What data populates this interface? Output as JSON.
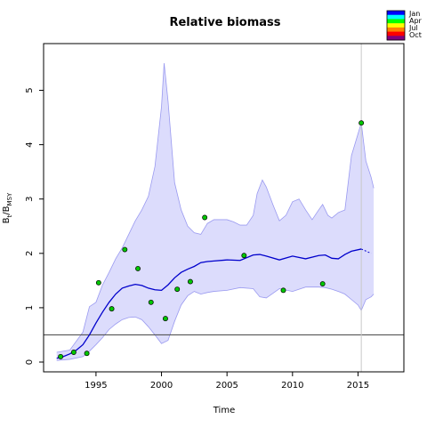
{
  "chart_data": {
    "type": "line",
    "title": "Relative biomass",
    "xlabel": "Time",
    "ylabel_main": "B",
    "ylabel_sub1": "t",
    "ylabel_sep": "/B",
    "ylabel_sub2": "MSY",
    "xlim": [
      1991,
      2018.5
    ],
    "ylim": [
      -0.18,
      5.86
    ],
    "x_ticks": [
      1995,
      2000,
      2005,
      2010,
      2015
    ],
    "y_ticks": [
      0,
      1,
      2,
      3,
      4,
      5
    ],
    "reference_line": 0.5,
    "vertical_marker": 2015.25,
    "grid": false,
    "legend_position": "top-right",
    "legend": [
      "Jan",
      "Apr",
      "Jul",
      "Oct"
    ],
    "legend_colors": [
      "#0000ff",
      "#00ffff",
      "#00ff00",
      "#ffff00",
      "#ff8000",
      "#ff0000",
      "#800080"
    ],
    "colors": {
      "band_fill": "#dcdcfc",
      "band_stroke": "#9a9af0",
      "line": "#0000cc",
      "point_fill": "#00c800",
      "reference": "#555555",
      "marker": "#c8c8c8"
    },
    "series": [
      {
        "kind": "estimate",
        "x": [
          1992.0,
          1992.5,
          1993.0,
          1993.5,
          1994.0,
          1994.5,
          1995.0,
          1995.5,
          1996.0,
          1996.5,
          1997.0,
          1997.5,
          1998.0,
          1998.5,
          1999.0,
          1999.5,
          2000.0,
          2000.5,
          2001.0,
          2001.5,
          2002.0,
          2002.5,
          2003.0,
          2003.5,
          2004.0,
          2005.0,
          2006.0,
          2007.0,
          2007.5,
          2008.0,
          2009.0,
          2010.0,
          2011.0,
          2012.0,
          2012.5,
          2013.0,
          2013.5,
          2014.0,
          2014.5,
          2015.25
        ],
        "y": [
          0.07,
          0.1,
          0.15,
          0.22,
          0.32,
          0.5,
          0.72,
          0.92,
          1.1,
          1.25,
          1.36,
          1.4,
          1.43,
          1.41,
          1.36,
          1.33,
          1.32,
          1.42,
          1.55,
          1.65,
          1.71,
          1.76,
          1.83,
          1.85,
          1.86,
          1.88,
          1.87,
          1.97,
          1.98,
          1.95,
          1.88,
          1.95,
          1.9,
          1.96,
          1.97,
          1.91,
          1.9,
          1.98,
          2.04,
          2.08
        ]
      },
      {
        "kind": "forecast",
        "x": [
          2015.25,
          2016.0
        ],
        "y": [
          2.08,
          2.0
        ]
      },
      {
        "kind": "upper",
        "x": [
          1992.0,
          1993.0,
          1994.0,
          1994.5,
          1995.0,
          1995.5,
          1996.0,
          1996.5,
          1997.0,
          1997.5,
          1998.0,
          1998.5,
          1999.0,
          1999.5,
          2000.0,
          2000.2,
          2000.5,
          2001.0,
          2001.5,
          2002.0,
          2002.5,
          2003.0,
          2003.5,
          2004.0,
          2005.0,
          2005.5,
          2006.0,
          2006.5,
          2007.0,
          2007.3,
          2007.7,
          2008.0,
          2008.5,
          2009.0,
          2009.5,
          2010.0,
          2010.5,
          2011.0,
          2011.5,
          2012.0,
          2012.3,
          2012.7,
          2013.0,
          2013.5,
          2014.0,
          2014.5,
          2015.0,
          2015.25,
          2015.6,
          2016.0,
          2016.2
        ],
        "y": [
          0.18,
          0.22,
          0.55,
          1.02,
          1.1,
          1.42,
          1.65,
          1.9,
          2.1,
          2.35,
          2.6,
          2.8,
          3.05,
          3.6,
          4.7,
          5.5,
          4.8,
          3.3,
          2.8,
          2.5,
          2.38,
          2.35,
          2.55,
          2.62,
          2.62,
          2.58,
          2.52,
          2.52,
          2.7,
          3.1,
          3.35,
          3.22,
          2.9,
          2.6,
          2.7,
          2.95,
          3.0,
          2.8,
          2.62,
          2.8,
          2.9,
          2.7,
          2.65,
          2.75,
          2.8,
          3.8,
          4.2,
          4.4,
          3.7,
          3.4,
          3.2
        ]
      },
      {
        "kind": "lower",
        "x": [
          1992.0,
          1993.0,
          1994.0,
          1994.5,
          1995.0,
          1995.5,
          1996.0,
          1996.5,
          1997.0,
          1997.5,
          1998.0,
          1998.5,
          1999.0,
          1999.5,
          2000.0,
          2000.5,
          2001.0,
          2001.5,
          2002.0,
          2002.5,
          2003.0,
          2003.5,
          2004.0,
          2005.0,
          2006.0,
          2007.0,
          2007.5,
          2008.0,
          2009.0,
          2010.0,
          2011.0,
          2012.0,
          2012.5,
          2013.0,
          2013.5,
          2014.0,
          2014.5,
          2015.0,
          2015.25,
          2015.6,
          2016.0,
          2016.2
        ],
        "y": [
          0.03,
          0.05,
          0.1,
          0.2,
          0.32,
          0.45,
          0.6,
          0.7,
          0.78,
          0.82,
          0.83,
          0.78,
          0.65,
          0.5,
          0.34,
          0.4,
          0.75,
          1.05,
          1.22,
          1.3,
          1.25,
          1.28,
          1.3,
          1.32,
          1.37,
          1.35,
          1.2,
          1.18,
          1.35,
          1.3,
          1.38,
          1.38,
          1.37,
          1.34,
          1.3,
          1.25,
          1.15,
          1.05,
          0.95,
          1.15,
          1.2,
          1.25
        ]
      },
      {
        "kind": "observations",
        "x": [
          1992.3,
          1993.3,
          1994.3,
          1995.2,
          1996.2,
          1997.2,
          1998.2,
          1999.2,
          2000.3,
          2001.2,
          2002.2,
          2003.3,
          2006.3,
          2009.3,
          2012.3,
          2015.25
        ],
        "y": [
          0.1,
          0.18,
          0.16,
          1.46,
          0.98,
          2.07,
          1.72,
          1.1,
          0.8,
          1.34,
          1.48,
          2.66,
          1.96,
          1.32,
          1.44,
          4.4
        ]
      }
    ]
  }
}
